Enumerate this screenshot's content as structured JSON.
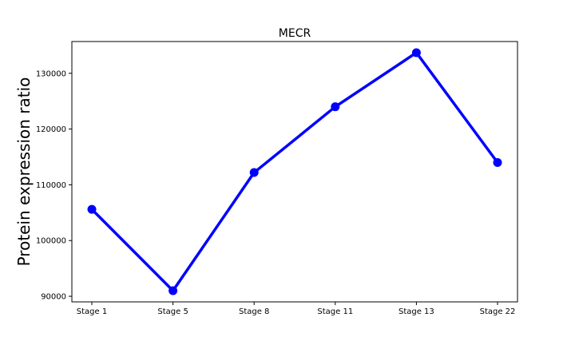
{
  "chart_data": {
    "type": "line",
    "title": "MECR",
    "xlabel": "",
    "ylabel": "Protein expression ratio",
    "categories": [
      "Stage 1",
      "Stage 5",
      "Stage 8",
      "Stage 11",
      "Stage 13",
      "Stage 22"
    ],
    "series": [
      {
        "values": [
          105600,
          91000,
          112200,
          124000,
          133700,
          114000
        ]
      }
    ],
    "y_ticks": [
      "90000",
      "100000",
      "110000",
      "120000",
      "130000"
    ],
    "y_tick_values": [
      90000,
      100000,
      110000,
      120000,
      130000
    ],
    "ylim": [
      89000,
      135700
    ],
    "grid": false,
    "legend": "none",
    "line_color": "#0000ff",
    "marker": "circle"
  }
}
